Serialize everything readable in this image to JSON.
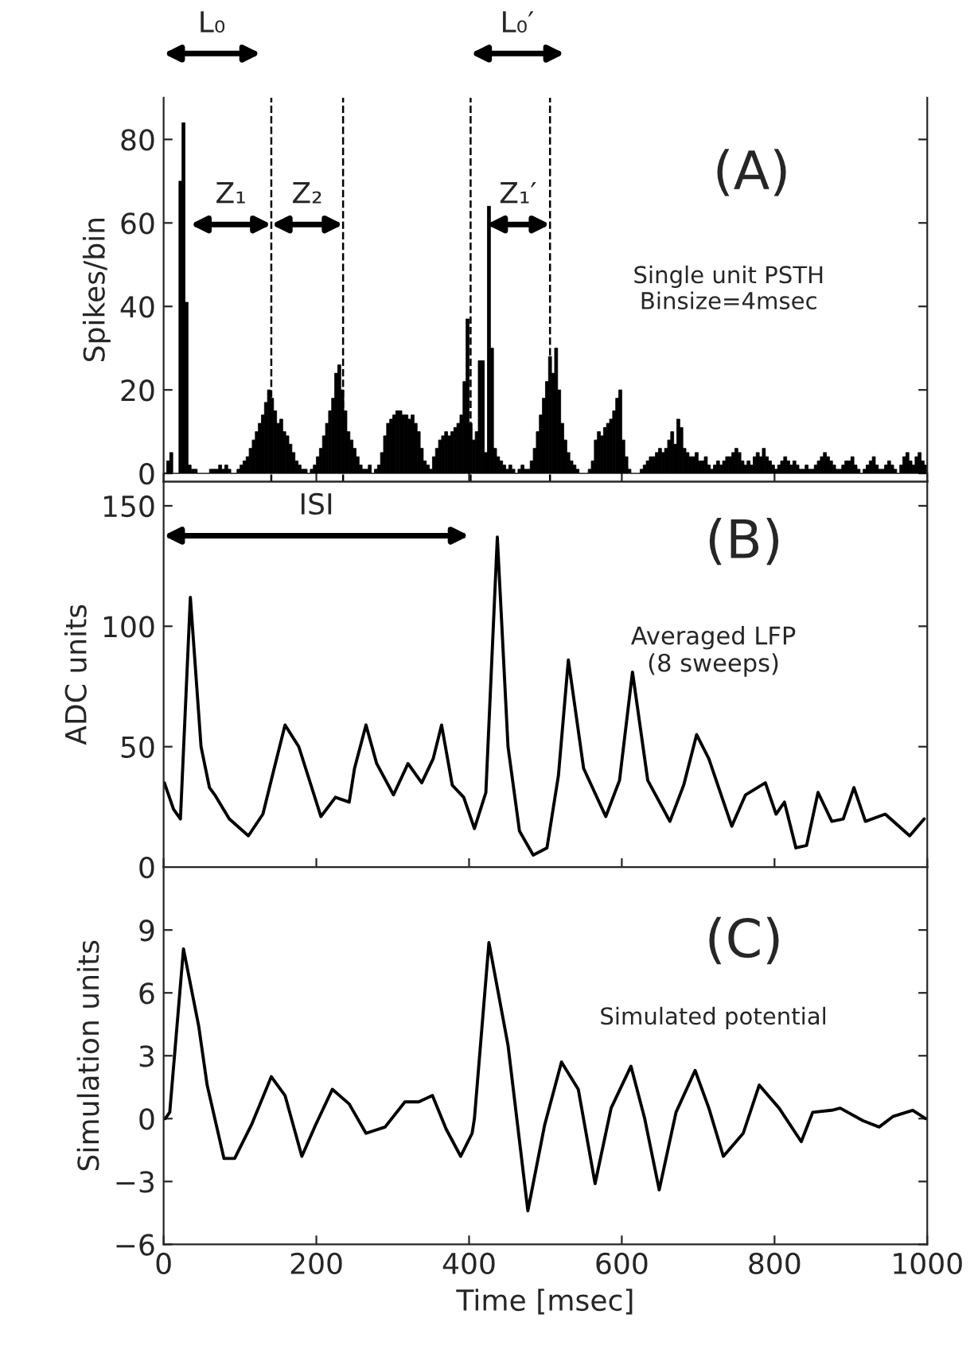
{
  "chart_data": [
    {
      "type": "histogram",
      "ylabel": "Spikes/bin",
      "xlim": [
        0,
        1000
      ],
      "ylim": [
        -2,
        90
      ],
      "xticks": [
        0,
        200,
        400,
        600,
        800,
        1000
      ],
      "yticks": [
        0,
        20,
        40,
        60,
        80
      ],
      "tick_labels": "y",
      "color": "#000000",
      "annotations": [
        "(A)",
        "Single unit PSTH\nBinsize=4msec",
        "L₀",
        "Z₁",
        "Z₂",
        "L₀′",
        "Z₁′"
      ],
      "ref_lines": [
        {
          "axis": "x",
          "value": 141,
          "line_style": "dashed",
          "color": "#000000"
        },
        {
          "axis": "x",
          "value": 235,
          "line_style": "dashed",
          "color": "#000000"
        },
        {
          "axis": "x",
          "value": 402,
          "line_style": "dashed",
          "color": "#000000"
        },
        {
          "axis": "x",
          "value": 506,
          "line_style": "dashed",
          "color": "#000000"
        }
      ],
      "bins": [
        0,
        4,
        8,
        12,
        16,
        20,
        24,
        28,
        32,
        36,
        40,
        44,
        48,
        52,
        56,
        60,
        64,
        68,
        72,
        76,
        80,
        84,
        88,
        92,
        96,
        100,
        104,
        108,
        112,
        116,
        120,
        124,
        128,
        132,
        136,
        140,
        144,
        148,
        152,
        156,
        160,
        164,
        168,
        172,
        176,
        180,
        184,
        188,
        192,
        196,
        200,
        204,
        208,
        212,
        216,
        220,
        224,
        228,
        232,
        236,
        240,
        244,
        248,
        252,
        256,
        260,
        264,
        268,
        272,
        276,
        280,
        284,
        288,
        292,
        296,
        300,
        304,
        308,
        312,
        316,
        320,
        324,
        328,
        332,
        336,
        340,
        344,
        348,
        352,
        356,
        360,
        364,
        368,
        372,
        376,
        380,
        384,
        388,
        392,
        396,
        400,
        404,
        408,
        412,
        416,
        420,
        424,
        428,
        432,
        436,
        440,
        444,
        448,
        452,
        456,
        460,
        464,
        468,
        472,
        476,
        480,
        484,
        488,
        492,
        496,
        500,
        504,
        508,
        512,
        516,
        520,
        524,
        528,
        532,
        536,
        540,
        544,
        548,
        552,
        556,
        560,
        564,
        568,
        572,
        576,
        580,
        584,
        588,
        592,
        596,
        600,
        604,
        608,
        612,
        616,
        620,
        624,
        628,
        632,
        636,
        640,
        644,
        648,
        652,
        656,
        660,
        664,
        668,
        672,
        676,
        680,
        684,
        688,
        692,
        696,
        700,
        704,
        708,
        712,
        716,
        720,
        724,
        728,
        732,
        736,
        740,
        744,
        748,
        752,
        756,
        760,
        764,
        768,
        772,
        776,
        780,
        784,
        788,
        792,
        796,
        800,
        804,
        808,
        812,
        816,
        820,
        824,
        828,
        832,
        836,
        840,
        844,
        848,
        852,
        856,
        860,
        864,
        868,
        872,
        876,
        880,
        884,
        888,
        892,
        896,
        900,
        904,
        908,
        912,
        916,
        920,
        924,
        928,
        932,
        936,
        940,
        944,
        948,
        952,
        956,
        960,
        964,
        968,
        972,
        976,
        980,
        984,
        988,
        992,
        996,
        1000
      ],
      "values": [
        0,
        3,
        5,
        0,
        0,
        70,
        84,
        41,
        2,
        1,
        1,
        0,
        0,
        0,
        0,
        1,
        1,
        1,
        2,
        1,
        2,
        1,
        0,
        0,
        1,
        2,
        3,
        4,
        6,
        8,
        10,
        12,
        14,
        17,
        20,
        18,
        15,
        12,
        13,
        10,
        9,
        7,
        5,
        3,
        2,
        1,
        1,
        0,
        1,
        2,
        4,
        6,
        9,
        12,
        15,
        18,
        24,
        26,
        20,
        15,
        10,
        8,
        6,
        4,
        2,
        1,
        1,
        2,
        0,
        1,
        2,
        5,
        9,
        12,
        13,
        14,
        15,
        15,
        14,
        14,
        13,
        14,
        12,
        10,
        6,
        3,
        2,
        1,
        4,
        6,
        8,
        9,
        10,
        9,
        10,
        11,
        12,
        14,
        22,
        37,
        12,
        8,
        10,
        27,
        27,
        5,
        64,
        30,
        6,
        4,
        3,
        2,
        1,
        2,
        1,
        0,
        1,
        2,
        1,
        1,
        3,
        6,
        10,
        14,
        18,
        22,
        28,
        24,
        30,
        20,
        12,
        8,
        5,
        3,
        2,
        1,
        0,
        0,
        0,
        1,
        3,
        8,
        10,
        9,
        11,
        12,
        13,
        15,
        18,
        20,
        8,
        4,
        1,
        0,
        0,
        0,
        1,
        2,
        3,
        4,
        4,
        5,
        6,
        5,
        6,
        8,
        10,
        7,
        13,
        11,
        6,
        5,
        4,
        4,
        5,
        3,
        3,
        4,
        2,
        1,
        2,
        3,
        2,
        3,
        4,
        4,
        5,
        6,
        5,
        3,
        2,
        3,
        2,
        4,
        5,
        4,
        6,
        4,
        3,
        2,
        1,
        2,
        3,
        4,
        3,
        2,
        3,
        2,
        1,
        1,
        2,
        1,
        1,
        2,
        3,
        4,
        5,
        4,
        3,
        2,
        1,
        1,
        2,
        3,
        3,
        4,
        2,
        1,
        0,
        1,
        2,
        3,
        4,
        2,
        1,
        1,
        2,
        3,
        2,
        1,
        0,
        2,
        4,
        5,
        3,
        2,
        4,
        5,
        3,
        2
      ]
    },
    {
      "type": "line",
      "ylabel": "ADC units",
      "xlim": [
        0,
        1000
      ],
      "ylim": [
        0,
        160
      ],
      "xticks": [
        0,
        200,
        400,
        600,
        800,
        1000
      ],
      "yticks": [
        0,
        50,
        100,
        150
      ],
      "tick_labels": "y",
      "annotations": [
        "(B)",
        "Averaged LFP\n(8 sweeps)",
        "ISI"
      ],
      "x": [
        1,
        13,
        22,
        35,
        49,
        60,
        67,
        86,
        111,
        130,
        144,
        159,
        177,
        206,
        225,
        243,
        250,
        265,
        279,
        301,
        320,
        338,
        353,
        364,
        378,
        393,
        407,
        422,
        437,
        451,
        466,
        484,
        502,
        517,
        530,
        550,
        579,
        597,
        614,
        634,
        663,
        681,
        698,
        714,
        744,
        762,
        788,
        802,
        813,
        828,
        842,
        857,
        875,
        890,
        904,
        919,
        945,
        977,
        996
      ],
      "series": [
        {
          "color": "#000000",
          "values": [
            35,
            24,
            20,
            112,
            50,
            33,
            30,
            20,
            13,
            22,
            40,
            59,
            50,
            21,
            29,
            27,
            41,
            59,
            43,
            30,
            43,
            35,
            45,
            59,
            34,
            29,
            16,
            31,
            137,
            50,
            15,
            5,
            8,
            38,
            86,
            41,
            21,
            36,
            81,
            36,
            19,
            34,
            55,
            45,
            17,
            30,
            35,
            22,
            27,
            8,
            9,
            31,
            19,
            20,
            33,
            19,
            22,
            13,
            20
          ]
        }
      ]
    },
    {
      "type": "line",
      "ylabel": "Simulation units",
      "xlabel": "Time [msec]",
      "xlim": [
        0,
        1000
      ],
      "ylim": [
        -6,
        12
      ],
      "xticks": [
        0,
        200,
        400,
        600,
        800,
        1000
      ],
      "yticks": [
        {
          "value": -6,
          "label": "−6"
        },
        {
          "value": -3,
          "label": "−3"
        },
        0,
        3,
        6,
        9
      ],
      "annotations": [
        "(C)",
        "Simulated potential"
      ],
      "x": [
        2,
        8,
        26,
        46,
        57,
        79,
        93,
        115,
        141,
        159,
        181,
        199,
        221,
        243,
        265,
        290,
        316,
        334,
        352,
        370,
        389,
        404,
        407,
        426,
        451,
        477,
        499,
        521,
        543,
        565,
        586,
        612,
        630,
        649,
        671,
        696,
        714,
        733,
        759,
        780,
        806,
        835,
        850,
        875,
        886,
        916,
        937,
        955,
        981,
        998
      ],
      "series": [
        {
          "color": "#000000",
          "values": [
            0,
            0.3,
            8.1,
            4.4,
            1.6,
            -1.9,
            -1.9,
            -0.3,
            2.0,
            1.1,
            -1.8,
            -0.3,
            1.4,
            0.7,
            -0.7,
            -0.4,
            0.8,
            0.8,
            1.1,
            -0.5,
            -1.8,
            -0.7,
            0.0,
            8.4,
            3.5,
            -4.4,
            -0.3,
            2.7,
            1.4,
            -3.1,
            0.5,
            2.5,
            0,
            -3.4,
            0.3,
            2.3,
            0.5,
            -1.8,
            -0.7,
            1.6,
            0.5,
            -1.1,
            0.3,
            0.4,
            0.5,
            -0.1,
            -0.4,
            0.1,
            0.4,
            0
          ]
        }
      ]
    }
  ]
}
